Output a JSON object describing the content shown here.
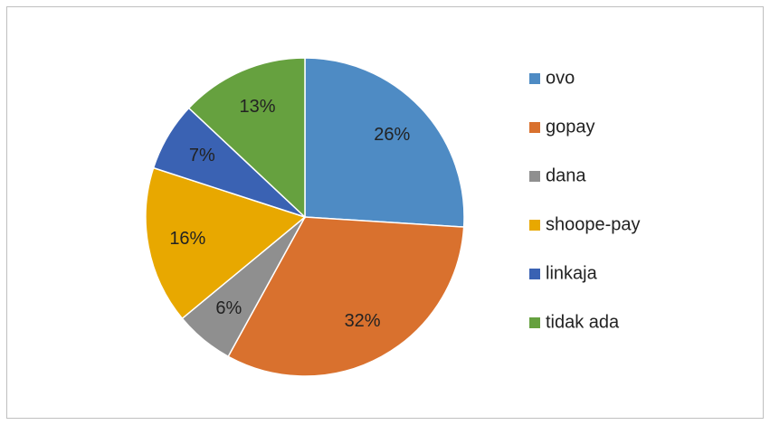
{
  "chart_data": {
    "type": "pie",
    "categories": [
      "ovo",
      "gopay",
      "dana",
      "shoope-pay",
      "linkaja",
      "tidak ada"
    ],
    "values": [
      26,
      32,
      6,
      16,
      7,
      13
    ],
    "value_labels": [
      "26%",
      "32%",
      "6%",
      "16%",
      "7%",
      "13%"
    ],
    "colors": [
      "#4e8bc4",
      "#d9712e",
      "#8f8f8f",
      "#e8a800",
      "#3a62b3",
      "#66a13f"
    ],
    "legend": "right"
  }
}
